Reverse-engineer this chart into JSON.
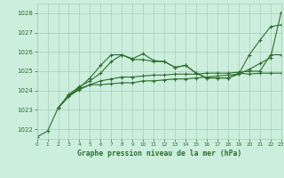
{
  "title": "Graphe pression niveau de la mer (hPa)",
  "background_color": "#cceedd",
  "grid_color": "#aaccbb",
  "line_color": "#2d6e2d",
  "x_min": 0,
  "x_max": 23,
  "y_min": 1021.5,
  "y_max": 1028.5,
  "y_ticks": [
    1022,
    1023,
    1024,
    1025,
    1026,
    1027,
    1028
  ],
  "lines": [
    {
      "x": [
        0,
        1,
        2,
        3,
        4,
        5,
        6,
        7,
        8,
        9,
        10,
        11,
        12,
        13,
        14,
        15,
        16,
        17,
        18,
        19,
        20,
        21,
        22,
        23
      ],
      "y": [
        1021.6,
        1021.9,
        1023.1,
        1023.7,
        1024.05,
        1024.3,
        1024.3,
        1024.35,
        1024.4,
        1024.4,
        1024.5,
        1024.5,
        1024.55,
        1024.6,
        1024.6,
        1024.65,
        1024.7,
        1024.75,
        1024.8,
        1024.85,
        1025.1,
        1025.4,
        1025.7,
        1028.05
      ]
    },
    {
      "x": [
        2,
        3,
        4,
        5,
        6,
        7,
        8,
        9,
        10,
        11,
        12,
        13,
        14,
        15,
        16,
        17,
        18,
        19,
        20,
        21,
        22,
        23
      ],
      "y": [
        1023.1,
        1023.7,
        1024.1,
        1024.3,
        1024.5,
        1024.6,
        1024.7,
        1024.7,
        1024.75,
        1024.8,
        1024.8,
        1024.85,
        1024.85,
        1024.85,
        1024.9,
        1024.9,
        1024.9,
        1024.95,
        1025.0,
        1025.0,
        1025.85,
        1025.85
      ]
    },
    {
      "x": [
        2,
        3,
        4,
        5,
        6,
        7,
        8,
        9,
        10,
        11,
        12,
        13,
        14,
        15,
        16,
        17,
        18,
        19,
        20,
        21,
        22,
        23
      ],
      "y": [
        1023.1,
        1023.8,
        1024.2,
        1024.5,
        1024.9,
        1025.5,
        1025.85,
        1025.6,
        1025.6,
        1025.5,
        1025.5,
        1025.2,
        1025.3,
        1024.9,
        1024.65,
        1024.65,
        1024.65,
        1024.9,
        1024.85,
        1024.9,
        1024.9,
        1024.9
      ]
    },
    {
      "x": [
        2,
        3,
        4,
        5,
        6,
        7,
        8,
        9,
        10,
        11,
        12,
        13,
        14,
        15,
        16,
        17,
        18,
        19,
        20,
        21,
        22,
        23
      ],
      "y": [
        1023.1,
        1023.75,
        1024.15,
        1024.65,
        1025.3,
        1025.85,
        1025.85,
        1025.65,
        1025.9,
        1025.55,
        1025.5,
        1025.2,
        1025.3,
        1024.9,
        1024.65,
        1024.65,
        1024.65,
        1024.85,
        1025.85,
        1026.6,
        1027.3,
        1027.4
      ]
    }
  ]
}
